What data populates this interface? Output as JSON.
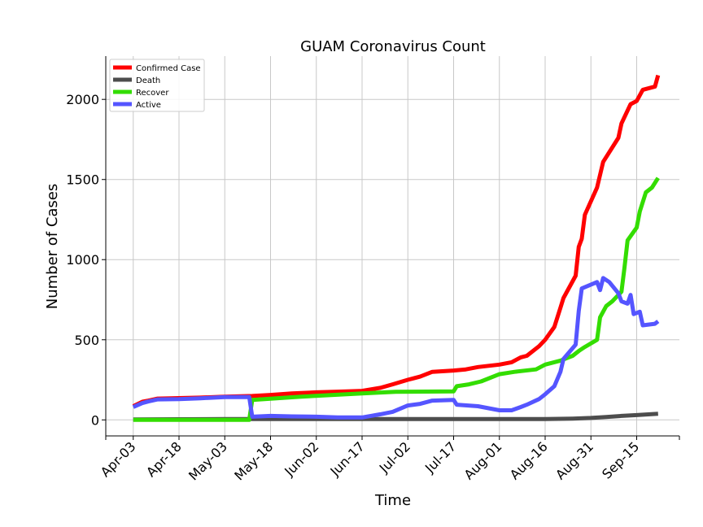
{
  "chart_data": {
    "type": "line",
    "title": "GUAM Coronavirus Count",
    "xlabel": "Time",
    "ylabel": "Number of Cases",
    "x_ticks": [
      "Apr-03",
      "Apr-18",
      "May-03",
      "May-18",
      "Jun-02",
      "Jun-17",
      "Jul-02",
      "Jul-17",
      "Aug-01",
      "Aug-16",
      "Aug-31",
      "Sep-15"
    ],
    "y_ticks": [
      "0",
      "500",
      "1000",
      "1500",
      "2000"
    ],
    "ylim": [
      -100,
      2270
    ],
    "x_start": "2020-03-25",
    "x_end": "2020-09-29",
    "grid": true,
    "legend_position": "top-left",
    "series": [
      {
        "name": "Confirmed Case",
        "color": "#ff0000",
        "points": [
          [
            "2020-04-03",
            85
          ],
          [
            "2020-04-06",
            113
          ],
          [
            "2020-04-08",
            120
          ],
          [
            "2020-04-11",
            133
          ],
          [
            "2020-04-18",
            136
          ],
          [
            "2020-04-25",
            139
          ],
          [
            "2020-05-03",
            145
          ],
          [
            "2020-05-12",
            149
          ],
          [
            "2020-05-18",
            156
          ],
          [
            "2020-05-25",
            165
          ],
          [
            "2020-06-02",
            172
          ],
          [
            "2020-06-09",
            176
          ],
          [
            "2020-06-17",
            181
          ],
          [
            "2020-06-23",
            200
          ],
          [
            "2020-06-27",
            222
          ],
          [
            "2020-07-02",
            250
          ],
          [
            "2020-07-06",
            270
          ],
          [
            "2020-07-10",
            300
          ],
          [
            "2020-07-17",
            308
          ],
          [
            "2020-07-21",
            315
          ],
          [
            "2020-07-25",
            330
          ],
          [
            "2020-08-01",
            345
          ],
          [
            "2020-08-05",
            360
          ],
          [
            "2020-08-08",
            390
          ],
          [
            "2020-08-10",
            400
          ],
          [
            "2020-08-14",
            460
          ],
          [
            "2020-08-16",
            500
          ],
          [
            "2020-08-19",
            580
          ],
          [
            "2020-08-21",
            700
          ],
          [
            "2020-08-22",
            760
          ],
          [
            "2020-08-26",
            900
          ],
          [
            "2020-08-27",
            1080
          ],
          [
            "2020-08-28",
            1130
          ],
          [
            "2020-08-29",
            1280
          ],
          [
            "2020-09-02",
            1450
          ],
          [
            "2020-09-04",
            1610
          ],
          [
            "2020-09-09",
            1760
          ],
          [
            "2020-09-10",
            1850
          ],
          [
            "2020-09-13",
            1970
          ],
          [
            "2020-09-15",
            1990
          ],
          [
            "2020-09-17",
            2060
          ],
          [
            "2020-09-21",
            2080
          ],
          [
            "2020-09-22",
            2150
          ]
        ]
      },
      {
        "name": "Death",
        "color": "#4d4d4d",
        "points": [
          [
            "2020-04-03",
            3
          ],
          [
            "2020-04-18",
            4
          ],
          [
            "2020-05-03",
            5
          ],
          [
            "2020-05-18",
            5
          ],
          [
            "2020-06-02",
            5
          ],
          [
            "2020-06-17",
            5
          ],
          [
            "2020-07-02",
            5
          ],
          [
            "2020-07-17",
            5
          ],
          [
            "2020-08-01",
            5
          ],
          [
            "2020-08-16",
            5
          ],
          [
            "2020-08-25",
            8
          ],
          [
            "2020-08-31",
            12
          ],
          [
            "2020-09-05",
            18
          ],
          [
            "2020-09-10",
            25
          ],
          [
            "2020-09-15",
            30
          ],
          [
            "2020-09-22",
            38
          ]
        ]
      },
      {
        "name": "Recover",
        "color": "#33dd00",
        "points": [
          [
            "2020-04-03",
            0
          ],
          [
            "2020-05-11",
            0
          ],
          [
            "2020-05-12",
            125
          ],
          [
            "2020-05-20",
            135
          ],
          [
            "2020-05-28",
            145
          ],
          [
            "2020-06-17",
            165
          ],
          [
            "2020-06-28",
            175
          ],
          [
            "2020-07-17",
            178
          ],
          [
            "2020-07-18",
            210
          ],
          [
            "2020-07-22",
            222
          ],
          [
            "2020-07-26",
            240
          ],
          [
            "2020-08-01",
            285
          ],
          [
            "2020-08-06",
            300
          ],
          [
            "2020-08-13",
            315
          ],
          [
            "2020-08-16",
            345
          ],
          [
            "2020-08-21",
            370
          ],
          [
            "2020-08-25",
            400
          ],
          [
            "2020-08-27",
            430
          ],
          [
            "2020-08-29",
            455
          ],
          [
            "2020-09-02",
            500
          ],
          [
            "2020-09-03",
            640
          ],
          [
            "2020-09-05",
            710
          ],
          [
            "2020-09-07",
            740
          ],
          [
            "2020-09-10",
            800
          ],
          [
            "2020-09-11",
            950
          ],
          [
            "2020-09-12",
            1120
          ],
          [
            "2020-09-15",
            1200
          ],
          [
            "2020-09-16",
            1300
          ],
          [
            "2020-09-18",
            1420
          ],
          [
            "2020-09-20",
            1450
          ],
          [
            "2020-09-22",
            1510
          ]
        ]
      },
      {
        "name": "Active",
        "color": "#5555ff",
        "points": [
          [
            "2020-04-03",
            80
          ],
          [
            "2020-04-06",
            105
          ],
          [
            "2020-04-08",
            115
          ],
          [
            "2020-04-11",
            128
          ],
          [
            "2020-04-18",
            130
          ],
          [
            "2020-04-25",
            135
          ],
          [
            "2020-05-03",
            142
          ],
          [
            "2020-05-11",
            143
          ],
          [
            "2020-05-12",
            20
          ],
          [
            "2020-05-18",
            25
          ],
          [
            "2020-05-25",
            22
          ],
          [
            "2020-06-02",
            20
          ],
          [
            "2020-06-09",
            15
          ],
          [
            "2020-06-17",
            15
          ],
          [
            "2020-06-23",
            35
          ],
          [
            "2020-06-27",
            50
          ],
          [
            "2020-07-02",
            90
          ],
          [
            "2020-07-06",
            100
          ],
          [
            "2020-07-10",
            120
          ],
          [
            "2020-07-17",
            125
          ],
          [
            "2020-07-18",
            95
          ],
          [
            "2020-07-25",
            85
          ],
          [
            "2020-08-01",
            60
          ],
          [
            "2020-08-05",
            60
          ],
          [
            "2020-08-08",
            80
          ],
          [
            "2020-08-10",
            95
          ],
          [
            "2020-08-14",
            130
          ],
          [
            "2020-08-16",
            160
          ],
          [
            "2020-08-19",
            210
          ],
          [
            "2020-08-21",
            300
          ],
          [
            "2020-08-22",
            380
          ],
          [
            "2020-08-26",
            470
          ],
          [
            "2020-08-27",
            680
          ],
          [
            "2020-08-28",
            820
          ],
          [
            "2020-09-02",
            860
          ],
          [
            "2020-09-03",
            810
          ],
          [
            "2020-09-04",
            885
          ],
          [
            "2020-09-06",
            860
          ],
          [
            "2020-09-09",
            790
          ],
          [
            "2020-09-10",
            740
          ],
          [
            "2020-09-12",
            725
          ],
          [
            "2020-09-13",
            780
          ],
          [
            "2020-09-14",
            660
          ],
          [
            "2020-09-16",
            675
          ],
          [
            "2020-09-17",
            590
          ],
          [
            "2020-09-21",
            600
          ],
          [
            "2020-09-22",
            615
          ]
        ]
      }
    ]
  }
}
